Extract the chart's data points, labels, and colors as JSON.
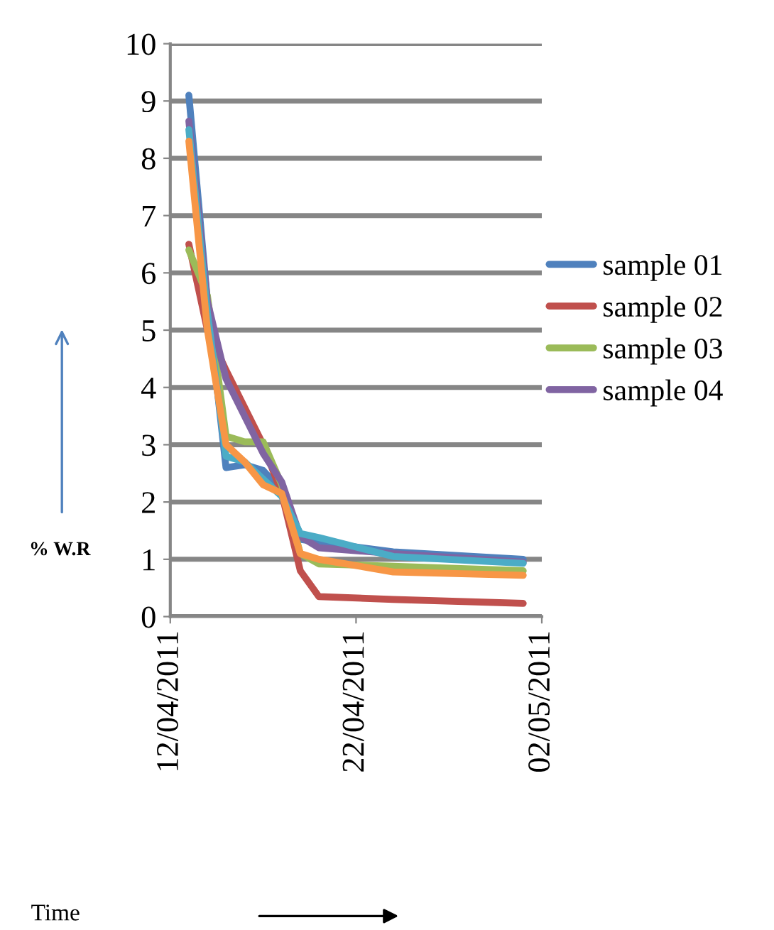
{
  "chart_data": {
    "type": "line",
    "annotations": [
      "Time"
    ],
    "ylabel": "% W.R",
    "x": [
      "2011-04-13",
      "2011-04-14",
      "2011-04-15",
      "2011-04-16",
      "2011-04-17",
      "2011-04-18",
      "2011-04-19",
      "2011-04-20",
      "2011-04-24",
      "2011-05-01"
    ],
    "series": [
      {
        "name": "sample 01",
        "color": "#4f81bd",
        "values": [
          9.1,
          5.5,
          2.6,
          2.65,
          2.55,
          2.2,
          1.35,
          1.3,
          1.13,
          1.0
        ]
      },
      {
        "name": "sample 02",
        "color": "#c0504d",
        "values": [
          6.5,
          5.0,
          4.3,
          3.65,
          3.0,
          2.15,
          0.8,
          0.35,
          0.3,
          0.23
        ]
      },
      {
        "name": "sample 03",
        "color": "#9bbb59",
        "values": [
          6.4,
          5.6,
          3.15,
          3.05,
          3.05,
          2.3,
          1.1,
          0.92,
          0.88,
          0.8
        ]
      },
      {
        "name": "sample 04",
        "color": "#8064a2",
        "values": [
          8.65,
          5.5,
          4.15,
          3.5,
          2.85,
          2.35,
          1.4,
          1.2,
          1.1,
          0.95
        ]
      },
      {
        "color": "#4bacc6",
        "values": [
          8.5,
          5.3,
          2.8,
          2.7,
          2.4,
          2.1,
          1.45,
          1.38,
          1.05,
          0.93
        ]
      },
      {
        "color": "#f79646",
        "values": [
          8.3,
          5.0,
          3.0,
          2.7,
          2.3,
          2.15,
          1.1,
          1.0,
          0.78,
          0.72
        ]
      }
    ],
    "xlim": [
      "2011-04-12",
      "2011-05-02"
    ],
    "xticks": [
      {
        "value": "2011-04-12",
        "label": "12/04/2011"
      },
      {
        "value": "2011-04-22",
        "label": "22/04/2011"
      },
      {
        "value": "2011-05-02",
        "label": "02/05/2011"
      }
    ],
    "ylim": [
      0,
      10
    ],
    "yticks": [
      0,
      1,
      2,
      3,
      4,
      5,
      6,
      7,
      8,
      9,
      10
    ],
    "grid": "y",
    "legend": "right",
    "marker": "none",
    "line_style": "solid"
  }
}
